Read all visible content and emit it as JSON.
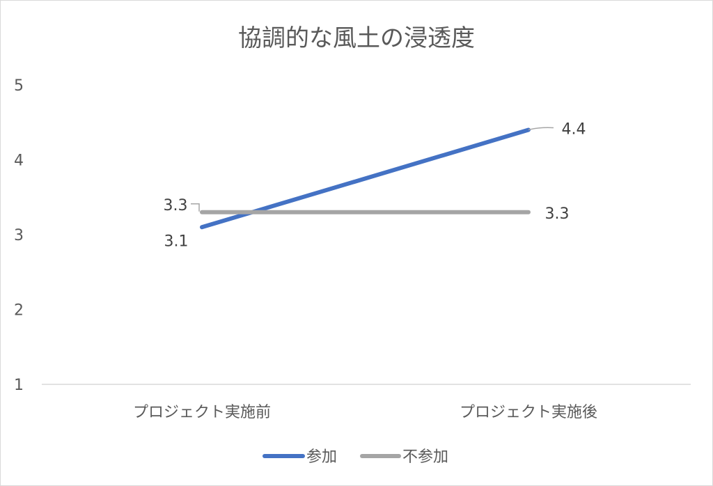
{
  "chart_data": {
    "type": "line",
    "title": "協調的な風土の浸透度",
    "xlabel": "",
    "ylabel": "",
    "categories": [
      "プロジェクト実施前",
      "プロジェクト実施後"
    ],
    "ylim": [
      1,
      5
    ],
    "yticks": [
      "1",
      "2",
      "3",
      "4",
      "5"
    ],
    "grid": false,
    "legend_position": "bottom",
    "series": [
      {
        "name": "参加",
        "values": [
          3.1,
          4.4
        ],
        "labels": [
          "3.1",
          "4.4"
        ],
        "color": "#4472c4"
      },
      {
        "name": "不参加",
        "values": [
          3.3,
          3.3
        ],
        "labels": [
          "3.3",
          "3.3"
        ],
        "color": "#a5a5a5"
      }
    ]
  }
}
